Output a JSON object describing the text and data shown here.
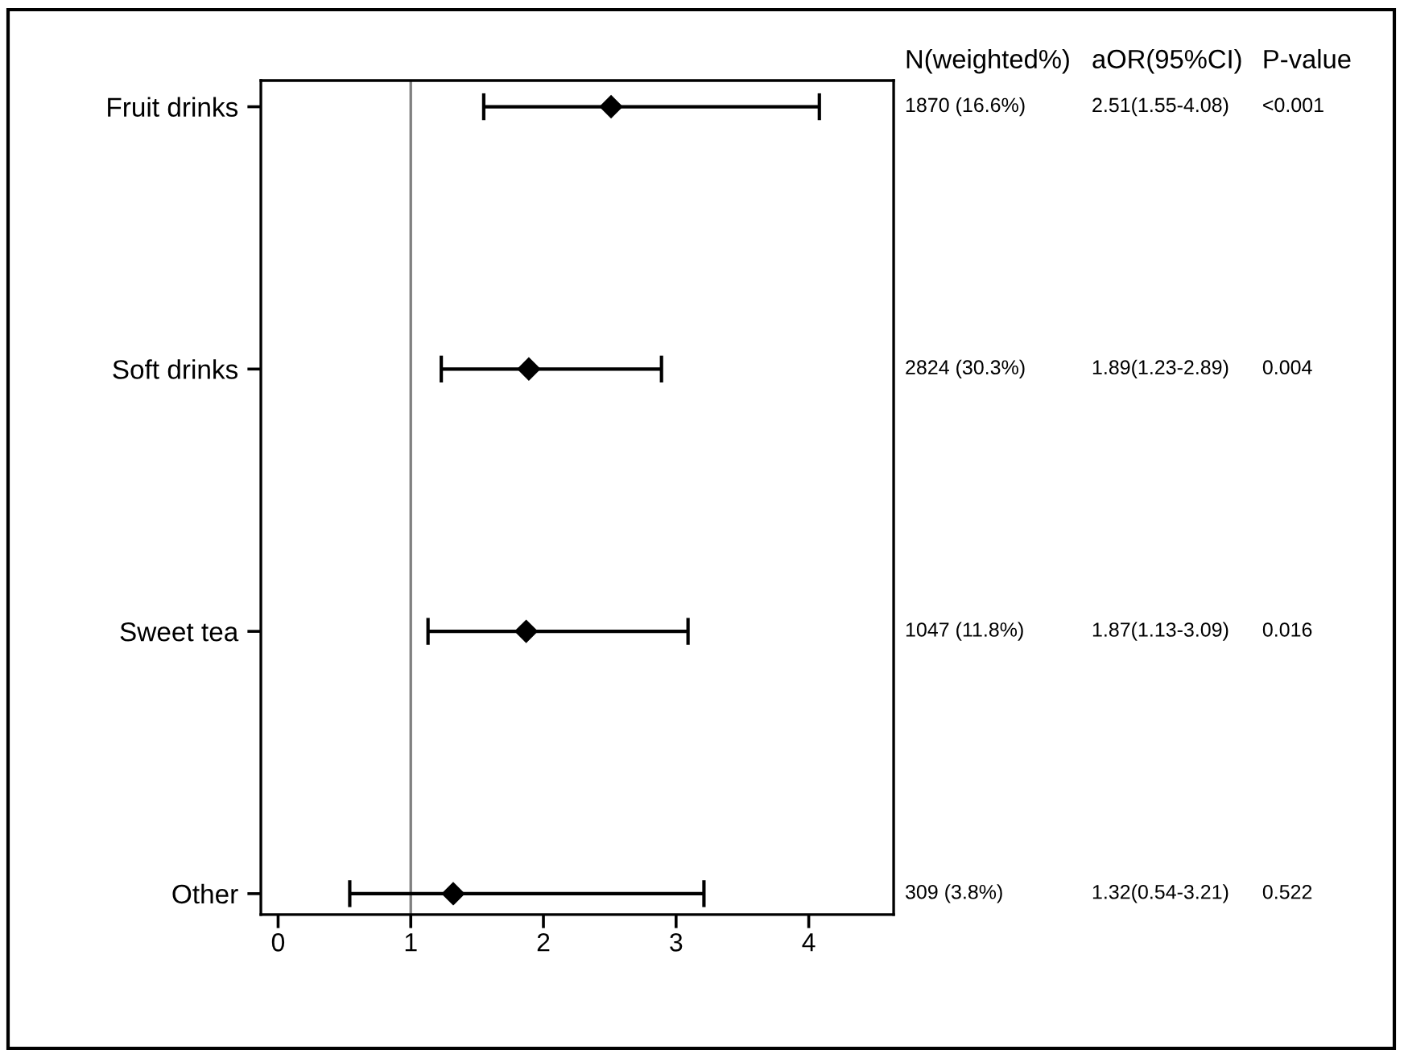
{
  "chart_data": {
    "type": "scatter",
    "orientation": "horizontal",
    "categories": [
      "Fruit drinks",
      "Soft drinks",
      "Sweet tea",
      "Other"
    ],
    "series": [
      {
        "color": "#000000",
        "values": [
          2.51,
          1.89,
          1.87,
          1.32
        ],
        "errors": [
          [
            1.55,
            4.08
          ],
          [
            1.23,
            2.89
          ],
          [
            1.13,
            3.09
          ],
          [
            0.54,
            3.21
          ]
        ],
        "value_labels": [
          "2.51(1.55-4.08)",
          "1.89(1.23-2.89)",
          "1.87(1.13-3.09)",
          "1.32(0.54-3.21)"
        ]
      }
    ],
    "marker": "diamond",
    "xlim": [
      -0.13,
      4.64
    ],
    "xticks": [
      0,
      1,
      2,
      3,
      4
    ],
    "ref_lines": [
      {
        "axis": "x",
        "value": 1,
        "color": "#808080"
      }
    ],
    "annotations": [
      "N(weighted%)",
      "aOR(95%CI)",
      "P-value",
      "1870 (16.6%)",
      "<0.001",
      "2824 (30.3%)",
      "0.004",
      "1047 (11.8%)",
      "0.016",
      "309 (3.8%)",
      "0.522"
    ]
  }
}
